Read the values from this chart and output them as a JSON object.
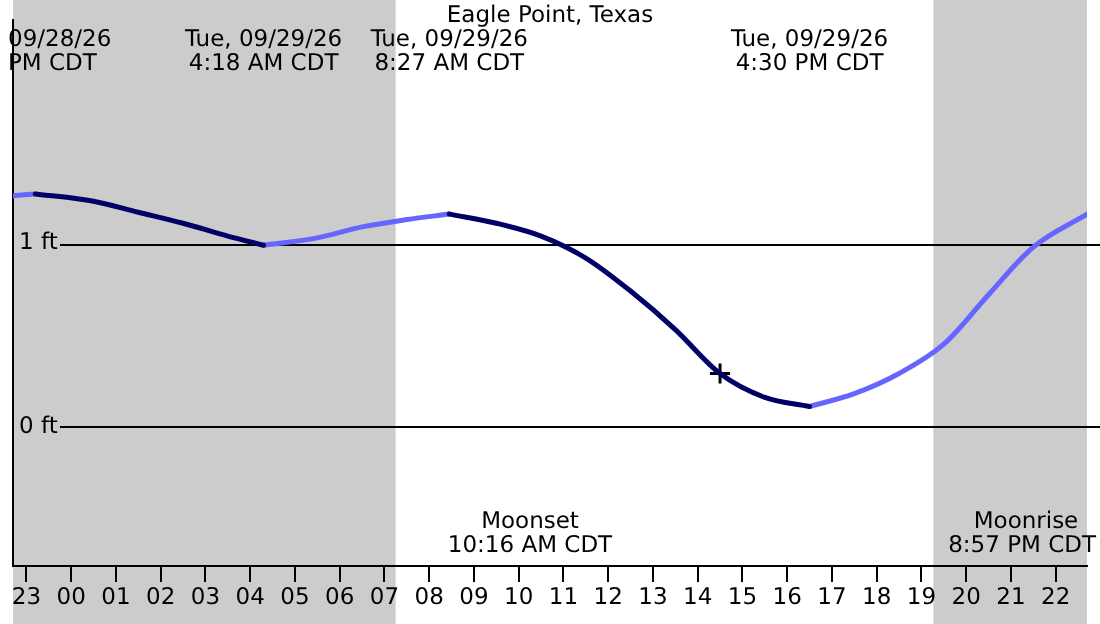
{
  "chart_data": {
    "type": "line",
    "title": "Eagle Point, Texas",
    "x": [
      "--09-28T22:42",
      "--09-28T23:12",
      "--09-29T00:30",
      "--09-29T01:30",
      "--09-29T02:30",
      "--09-29T03:30",
      "--09-29T04:18",
      "--09-29T05:30",
      "--09-29T06:30",
      "--09-29T07:30",
      "--09-29T08:27",
      "--09-29T09:30",
      "--09-29T10:30",
      "--09-29T11:30",
      "--09-29T12:30",
      "--09-29T13:30",
      "--09-29T14:30",
      "--09-29T15:30",
      "--09-29T16:30",
      "--09-29T17:30",
      "--09-29T18:30",
      "--09-29T19:30",
      "--09-29T20:30",
      "--09-29T21:30",
      "--09-29T22:42"
    ],
    "series": [
      {
        "color": "#000066",
        "values": [
          null,
          1.27,
          1.23,
          1.17,
          1.11,
          1.04,
          0.99,
          null,
          null,
          null,
          1.16,
          1.11,
          1.04,
          0.92,
          0.74,
          0.53,
          0.29,
          0.16,
          0.11,
          null,
          null,
          null,
          null,
          null,
          null
        ]
      },
      {
        "color": "#6666ff",
        "values": [
          1.26,
          1.27,
          null,
          null,
          null,
          null,
          0.99,
          1.03,
          1.09,
          1.13,
          1.16,
          null,
          null,
          null,
          null,
          null,
          null,
          null,
          0.11,
          0.18,
          0.29,
          0.45,
          0.72,
          0.98,
          1.16
        ]
      },
      {
        "type": "scatter",
        "marker": "cross",
        "color": "#000000",
        "x": [
          "--09-29T14:30"
        ],
        "values": [
          0.29
        ]
      }
    ],
    "xlim": [
      "--09-28T22:42",
      "--09-29T22:42"
    ],
    "xticks": [
      {
        "value": "--09-28T23:00",
        "label": "23"
      },
      {
        "value": "--09-29T00:00",
        "label": "00"
      },
      {
        "value": "--09-29T01:00",
        "label": "01"
      },
      {
        "value": "--09-29T02:00",
        "label": "02"
      },
      {
        "value": "--09-29T03:00",
        "label": "03"
      },
      {
        "value": "--09-29T04:00",
        "label": "04"
      },
      {
        "value": "--09-29T05:00",
        "label": "05"
      },
      {
        "value": "--09-29T06:00",
        "label": "06"
      },
      {
        "value": "--09-29T07:00",
        "label": "07"
      },
      {
        "value": "--09-29T08:00",
        "label": "08"
      },
      {
        "value": "--09-29T09:00",
        "label": "09"
      },
      {
        "value": "--09-29T10:00",
        "label": "10"
      },
      {
        "value": "--09-29T11:00",
        "label": "11"
      },
      {
        "value": "--09-29T12:00",
        "label": "12"
      },
      {
        "value": "--09-29T13:00",
        "label": "13"
      },
      {
        "value": "--09-29T14:00",
        "label": "14"
      },
      {
        "value": "--09-29T15:00",
        "label": "15"
      },
      {
        "value": "--09-29T16:00",
        "label": "16"
      },
      {
        "value": "--09-29T17:00",
        "label": "17"
      },
      {
        "value": "--09-29T18:00",
        "label": "18"
      },
      {
        "value": "--09-29T19:00",
        "label": "19"
      },
      {
        "value": "--09-29T20:00",
        "label": "20"
      },
      {
        "value": "--09-29T21:00",
        "label": "21"
      },
      {
        "value": "--09-29T22:00",
        "label": "22"
      }
    ],
    "ylim": [
      -0.76,
      2.22
    ],
    "yticks": [
      {
        "value": 0,
        "label": "0 ft"
      },
      {
        "value": 1,
        "label": "1 ft"
      }
    ],
    "grid": "y",
    "legend": false,
    "bands": [
      {
        "axis": "x",
        "from": "--09-28T22:42",
        "to": "--09-29T07:15",
        "color": "#cccccc"
      },
      {
        "axis": "x",
        "from": "--09-29T19:16",
        "to": "--09-29T22:42",
        "color": "#cccccc"
      }
    ],
    "annotations": [
      "09/28/26\nPM CDT",
      "Tue, 09/29/26\n4:18 AM CDT",
      "Tue, 09/29/26\n8:27 AM CDT",
      "Tue, 09/29/26\n4:30 PM CDT",
      "Moonset\n10:16 AM CDT",
      "Moonrise\n8:57 PM CDT"
    ]
  }
}
